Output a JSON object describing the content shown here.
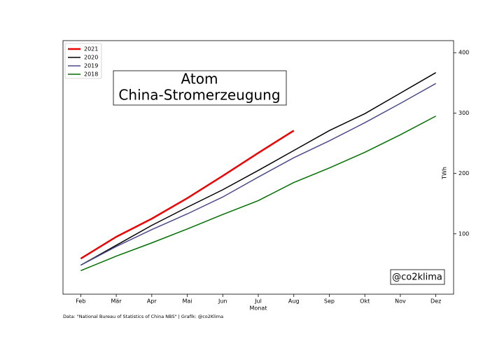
{
  "chart_data": {
    "type": "line",
    "title": "Atom",
    "subtitle": "China-Stromerzeugung",
    "x_label": "Monat",
    "y_label": "TWh",
    "annotation": "@co2klima",
    "source": "Data: \"National Bureau of Statistics of China NBS\" | Grafik: @co2Klima",
    "categories": [
      "Feb",
      "Mär",
      "Apr",
      "Mai",
      "Jun",
      "Jul",
      "Aug",
      "Sep",
      "Okt",
      "Nov",
      "Dez"
    ],
    "series": [
      {
        "name": "2021",
        "color": "#ee0000",
        "values": [
          59,
          95,
          125,
          159,
          196,
          234,
          271,
          null,
          null,
          null,
          null
        ]
      },
      {
        "name": "2020",
        "color": "#000000",
        "values": [
          48,
          81,
          114,
          144,
          173,
          205,
          238,
          271,
          299,
          333,
          367
        ]
      },
      {
        "name": "2019",
        "color": "#4b4b8a",
        "values": [
          48,
          79,
          107,
          133,
          161,
          194,
          226,
          254,
          284,
          316,
          349
        ]
      },
      {
        "name": "2018",
        "color": "#007000",
        "values": [
          39,
          63,
          85,
          108,
          132,
          155,
          185,
          209,
          235,
          264,
          295
        ]
      }
    ],
    "ylim": [
      0,
      420
    ],
    "yticks": [
      100,
      200,
      300,
      400
    ],
    "legend": "upper left",
    "grid": false
  }
}
